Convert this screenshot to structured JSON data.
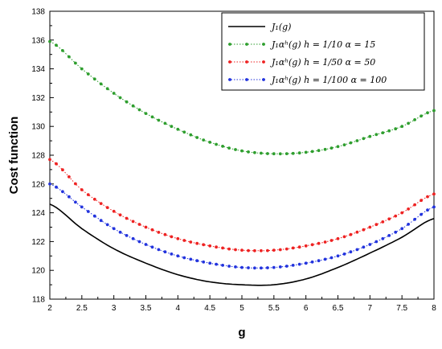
{
  "chart_data": {
    "type": "line",
    "title": "",
    "xlabel": "g",
    "ylabel": "Cost function",
    "xlim": [
      2,
      8
    ],
    "ylim": [
      118,
      138
    ],
    "xticks": [
      "2",
      "2.5",
      "3",
      "3.5",
      "4",
      "4.5",
      "5",
      "5.5",
      "6",
      "6.5",
      "7",
      "7.5",
      "8"
    ],
    "yticks": [
      "118",
      "120",
      "122",
      "124",
      "126",
      "128",
      "130",
      "132",
      "134",
      "136",
      "138"
    ],
    "grid": false,
    "legend_position": "top-right",
    "series": [
      {
        "name": "J₁(g)",
        "color": "#000000",
        "style": "solid",
        "x": [
          2,
          2.5,
          3,
          3.5,
          4,
          4.5,
          5,
          5.5,
          6,
          6.5,
          7,
          7.5,
          8
        ],
        "y": [
          124.6,
          122.9,
          121.5,
          120.5,
          119.7,
          119.2,
          119.0,
          119.0,
          119.4,
          120.2,
          121.2,
          122.3,
          123.6
        ]
      },
      {
        "name": "J₁αʰ(g)   h = 1/10  α = 15",
        "color": "#2e9e2e",
        "style": "dotted-markers",
        "x": [
          2,
          2.5,
          3,
          3.5,
          4,
          4.5,
          5,
          5.5,
          6,
          6.5,
          7,
          7.5,
          8
        ],
        "y": [
          135.9,
          134.0,
          132.3,
          130.9,
          129.8,
          128.9,
          128.3,
          128.1,
          128.2,
          128.6,
          129.3,
          130.0,
          131.1
        ]
      },
      {
        "name": "J₁αʰ(g)   h = 1/50  α = 50",
        "color": "#ee2222",
        "style": "dotted-markers",
        "x": [
          2,
          2.5,
          3,
          3.5,
          4,
          4.5,
          5,
          5.5,
          6,
          6.5,
          7,
          7.5,
          8
        ],
        "y": [
          127.7,
          125.6,
          124.1,
          123.0,
          122.2,
          121.7,
          121.4,
          121.4,
          121.7,
          122.2,
          123.0,
          124.0,
          125.3
        ]
      },
      {
        "name": "J₁αʰ(g)   h = 1/100  α = 100",
        "color": "#2233dd",
        "style": "dotted-markers",
        "x": [
          2,
          2.5,
          3,
          3.5,
          4,
          4.5,
          5,
          5.5,
          6,
          6.5,
          7,
          7.5,
          8
        ],
        "y": [
          126.0,
          124.4,
          122.9,
          121.8,
          121.0,
          120.5,
          120.2,
          120.2,
          120.5,
          121.0,
          121.8,
          122.9,
          124.4
        ]
      }
    ]
  }
}
